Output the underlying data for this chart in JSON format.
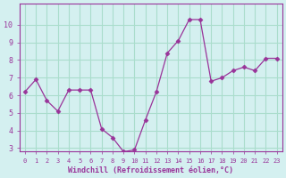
{
  "x": [
    0,
    1,
    2,
    3,
    4,
    5,
    6,
    7,
    8,
    9,
    10,
    11,
    12,
    13,
    14,
    15,
    16,
    17,
    18,
    19,
    20,
    21,
    22,
    23
  ],
  "y": [
    6.2,
    6.9,
    5.7,
    5.1,
    6.3,
    6.3,
    6.3,
    4.1,
    3.6,
    2.8,
    2.9,
    4.6,
    6.2,
    8.4,
    9.1,
    10.3,
    10.3,
    6.8,
    7.0,
    7.4,
    7.6,
    7.4,
    8.1,
    8.1
  ],
  "line_color": "#993399",
  "marker_color": "#993399",
  "bg_color": "#d4f0f0",
  "grid_color": "#aaddcc",
  "xlabel": "Windchill (Refroidissement éolien,°C)",
  "ylim": [
    3,
    11
  ],
  "xlim": [
    0,
    23
  ],
  "yticks": [
    3,
    4,
    5,
    6,
    7,
    8,
    9,
    10
  ],
  "xticks": [
    0,
    1,
    2,
    3,
    4,
    5,
    6,
    7,
    8,
    9,
    10,
    11,
    12,
    13,
    14,
    15,
    16,
    17,
    18,
    19,
    20,
    21,
    22,
    23
  ],
  "axis_color": "#993399",
  "tick_label_color": "#993399",
  "xlabel_color": "#993399"
}
